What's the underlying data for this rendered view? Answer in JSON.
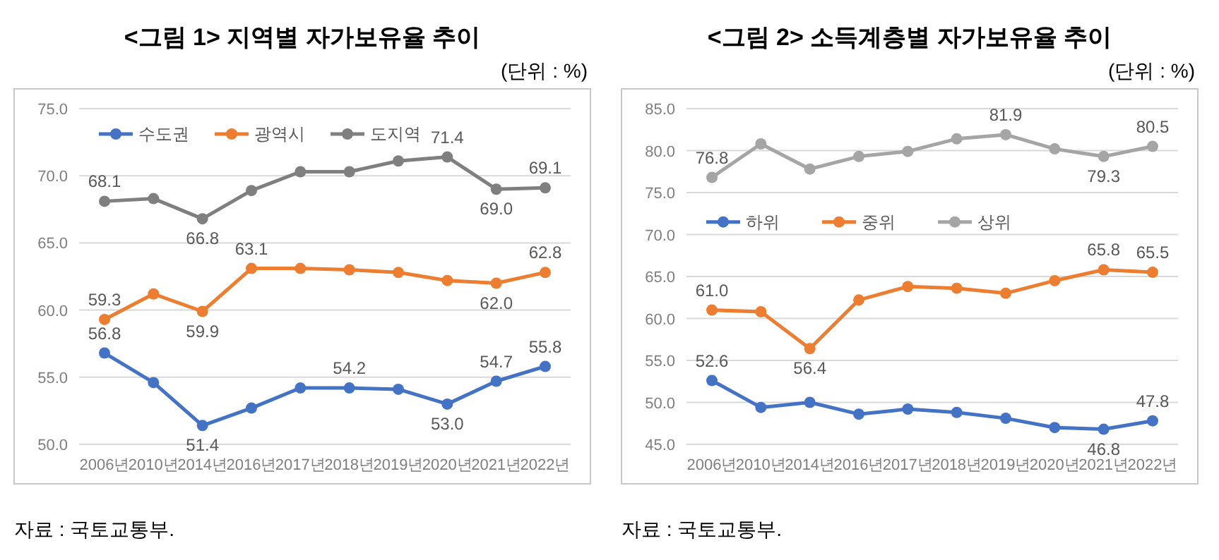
{
  "chart_data": [
    {
      "type": "line",
      "title": "<그림 1> 지역별 자가보유율 추이",
      "subtitle": "(단위 : %)",
      "annotations": [
        "자료 : 국토교통부."
      ],
      "categories": [
        "2006년",
        "2010년",
        "2014년",
        "2016년",
        "2017년",
        "2018년",
        "2019년",
        "2020년",
        "2021년",
        "2022년"
      ],
      "ylim": [
        50,
        75
      ],
      "yticks": [
        {
          "value": 50,
          "label": "50.0"
        },
        {
          "value": 55,
          "label": "55.0"
        },
        {
          "value": 60,
          "label": "60.0"
        },
        {
          "value": 65,
          "label": "65.0"
        },
        {
          "value": 70,
          "label": "70.0"
        },
        {
          "value": 75,
          "label": "75.0"
        }
      ],
      "grid": "y",
      "legend": "top left",
      "marker": "circle",
      "line_style": "solid",
      "series": [
        {
          "name": "수도권",
          "color": "#4472c4",
          "values": [
            56.8,
            54.6,
            51.4,
            52.7,
            54.2,
            54.2,
            54.1,
            53.0,
            54.7,
            55.8
          ],
          "value_labels": [
            "56.8",
            null,
            "51.4",
            null,
            null,
            "54.2",
            null,
            "53.0",
            "54.7",
            "55.8"
          ]
        },
        {
          "name": "광역시",
          "color": "#ed7d31",
          "values": [
            59.3,
            61.2,
            59.9,
            63.1,
            63.1,
            63.0,
            62.8,
            62.2,
            62.0,
            62.8
          ],
          "value_labels": [
            "59.3",
            null,
            "59.9",
            "63.1",
            null,
            null,
            null,
            null,
            "62.0",
            "62.8"
          ]
        },
        {
          "name": "도지역",
          "color": "#7f7f7f",
          "values": [
            68.1,
            68.3,
            66.8,
            68.9,
            70.3,
            70.3,
            71.1,
            71.4,
            69.0,
            69.1
          ],
          "value_labels": [
            "68.1",
            null,
            "66.8",
            null,
            null,
            null,
            null,
            "71.4",
            "69.0",
            "69.1"
          ]
        }
      ]
    },
    {
      "type": "line",
      "title": "<그림 2> 소득계층별 자가보유율 추이",
      "subtitle": "(단위 : %)",
      "annotations": [
        "자료 : 국토교통부."
      ],
      "categories": [
        "2006년",
        "2010년",
        "2014년",
        "2016년",
        "2017년",
        "2018년",
        "2019년",
        "2020년",
        "2021년",
        "2022년"
      ],
      "ylim": [
        45,
        85
      ],
      "yticks": [
        {
          "value": 45,
          "label": "45.0"
        },
        {
          "value": 50,
          "label": "50.0"
        },
        {
          "value": 55,
          "label": "55.0"
        },
        {
          "value": 60,
          "label": "60.0"
        },
        {
          "value": 65,
          "label": "65.0"
        },
        {
          "value": 70,
          "label": "70.0"
        },
        {
          "value": 75,
          "label": "75.0"
        },
        {
          "value": 80,
          "label": "80.0"
        },
        {
          "value": 85,
          "label": "85.0"
        }
      ],
      "grid": "y",
      "legend": "left",
      "marker": "circle",
      "line_style": "solid",
      "series": [
        {
          "name": "하위",
          "color": "#4472c4",
          "values": [
            52.6,
            49.4,
            50.0,
            48.6,
            49.2,
            48.8,
            48.1,
            47.0,
            46.8,
            47.8
          ],
          "value_labels": [
            "52.6",
            null,
            null,
            null,
            null,
            null,
            null,
            null,
            "46.8",
            "47.8"
          ]
        },
        {
          "name": "중위",
          "color": "#ed7d31",
          "values": [
            61.0,
            60.8,
            56.4,
            62.2,
            63.8,
            63.6,
            63.0,
            64.5,
            65.8,
            65.5
          ],
          "value_labels": [
            "61.0",
            null,
            "56.4",
            null,
            null,
            null,
            null,
            null,
            "65.8",
            "65.5"
          ]
        },
        {
          "name": "상위",
          "color": "#a5a5a5",
          "values": [
            76.8,
            80.8,
            77.8,
            79.3,
            79.9,
            81.4,
            81.9,
            80.2,
            79.3,
            80.5
          ],
          "value_labels": [
            "76.8",
            null,
            null,
            null,
            null,
            null,
            "81.9",
            null,
            "79.3",
            "80.5"
          ]
        }
      ]
    }
  ]
}
